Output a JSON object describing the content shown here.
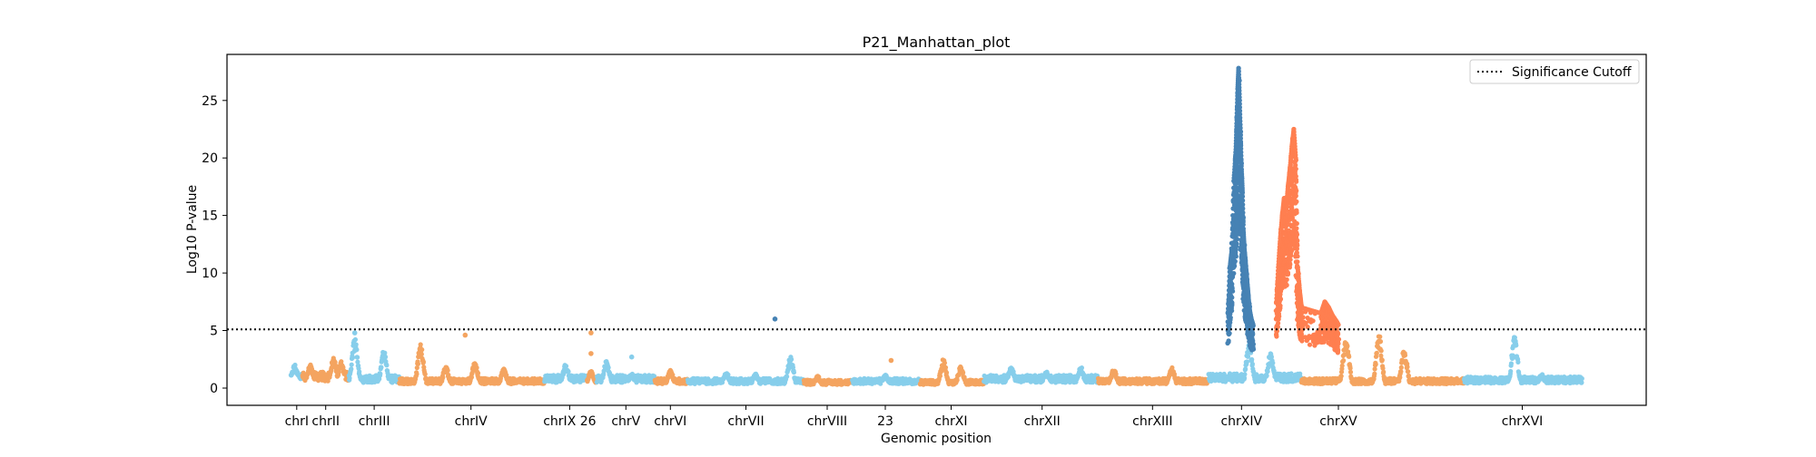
{
  "chart_data": {
    "type": "scatter",
    "title": "P21_Manhattan_plot",
    "xlabel": "Genomic position",
    "ylabel": "Log10 P-value",
    "ylim": [
      -1.5,
      29
    ],
    "yticks": [
      0,
      5,
      10,
      15,
      20,
      25
    ],
    "grid": false,
    "legend": {
      "placement": "top-right",
      "entries": [
        "Significance Cutoff"
      ]
    },
    "threshold": {
      "label": "Significance Cutoff",
      "value": 5.1,
      "style": "dotted",
      "color": "#000000"
    },
    "colors": {
      "sky": "#87ceeb",
      "orange": "#f4a460",
      "steelblue": "#4682b4",
      "coral": "#ff7f50"
    },
    "chromosomes": [
      {
        "label": "chrI",
        "start": 0,
        "end": 6,
        "color": "sky",
        "baseline": 1.0,
        "peaks": [
          [
            2,
            2.0
          ]
        ]
      },
      {
        "label": "chrII",
        "start": 6,
        "end": 30,
        "color": "orange",
        "baseline": 1.0,
        "peaks": [
          [
            10,
            2.0
          ],
          [
            22,
            2.5
          ],
          [
            26,
            2.2
          ]
        ]
      },
      {
        "label": "chrIII",
        "start": 30,
        "end": 56,
        "color": "sky",
        "baseline": 0.8,
        "peaks": [
          [
            33,
            4.3
          ],
          [
            48,
            3.2
          ]
        ]
      },
      {
        "label": "chrIV",
        "start": 56,
        "end": 131,
        "color": "orange",
        "baseline": 0.6,
        "peaks": [
          [
            67,
            3.7
          ],
          [
            80,
            1.8
          ],
          [
            95,
            2.2
          ],
          [
            110,
            1.6
          ]
        ]
      },
      {
        "label": "chrIX",
        "start": 131,
        "end": 153,
        "color": "sky",
        "baseline": 0.8,
        "peaks": [
          [
            142,
            2.0
          ]
        ]
      },
      {
        "label": "26",
        "start": 153,
        "end": 158,
        "color": "orange",
        "baseline": 0.7,
        "peaks": [
          [
            155,
            1.4
          ]
        ]
      },
      {
        "label": "chrV",
        "start": 158,
        "end": 188,
        "color": "sky",
        "baseline": 0.8,
        "peaks": [
          [
            163,
            2.3
          ],
          [
            176,
            1.2
          ]
        ]
      },
      {
        "label": "chrVI",
        "start": 188,
        "end": 205,
        "color": "orange",
        "baseline": 0.6,
        "peaks": [
          [
            196,
            1.5
          ]
        ]
      },
      {
        "label": "chrVII",
        "start": 205,
        "end": 265,
        "color": "sky",
        "baseline": 0.6,
        "peaks": [
          [
            225,
            1.3
          ],
          [
            240,
            1.2
          ],
          [
            258,
            2.6
          ]
        ]
      },
      {
        "label": "chrVIII",
        "start": 265,
        "end": 290,
        "color": "orange",
        "baseline": 0.5,
        "peaks": [
          [
            272,
            1.0
          ]
        ]
      },
      {
        "label": "23",
        "start": 290,
        "end": 325,
        "color": "sky",
        "baseline": 0.6,
        "peaks": [
          [
            307,
            1.1
          ]
        ]
      },
      {
        "label": "chrXI",
        "start": 325,
        "end": 358,
        "color": "orange",
        "baseline": 0.5,
        "peaks": [
          [
            337,
            2.4
          ],
          [
            346,
            1.8
          ]
        ]
      },
      {
        "label": "chrXII",
        "start": 358,
        "end": 417,
        "color": "sky",
        "baseline": 0.8,
        "peaks": [
          [
            372,
            1.8
          ],
          [
            390,
            1.5
          ],
          [
            408,
            1.8
          ]
        ]
      },
      {
        "label": "chrXIII",
        "start": 417,
        "end": 474,
        "color": "orange",
        "baseline": 0.6,
        "peaks": [
          [
            425,
            1.6
          ],
          [
            455,
            1.7
          ]
        ]
      },
      {
        "label": "chrXIV",
        "start": 474,
        "end": 522,
        "color": "sky",
        "baseline": 0.9,
        "peaks": [
          [
            495,
            4.0
          ],
          [
            506,
            3.0
          ]
        ]
      },
      {
        "label": "chrXV",
        "start": 522,
        "end": 606,
        "color": "orange",
        "baseline": 0.6,
        "peaks": [
          [
            545,
            4.5
          ],
          [
            562,
            4.5
          ],
          [
            575,
            3.2
          ]
        ]
      },
      {
        "label": "chrXVI",
        "start": 606,
        "end": 667,
        "color": "sky",
        "baseline": 0.7,
        "peaks": [
          [
            632,
            4.3
          ],
          [
            646,
            1.2
          ]
        ]
      }
    ],
    "sig_series": [
      {
        "color": "steelblue",
        "points": [
          [
            484,
            6.5
          ],
          [
            485,
            10.5
          ],
          [
            486,
            12.0
          ],
          [
            487,
            18.0
          ],
          [
            488,
            20.5
          ],
          [
            488.5,
            23.0
          ],
          [
            489,
            26.0
          ],
          [
            489.5,
            27.8
          ],
          [
            490,
            25.0
          ],
          [
            490.5,
            22.0
          ],
          [
            491,
            19.0
          ],
          [
            491.5,
            17.0
          ],
          [
            492,
            13.5
          ],
          [
            492.5,
            12.0
          ],
          [
            493,
            11.0
          ],
          [
            493.5,
            10.0
          ],
          [
            494,
            9.0
          ],
          [
            494.5,
            8.0
          ],
          [
            495,
            7.0
          ],
          [
            496,
            6.0
          ],
          [
            497,
            5.5
          ]
        ]
      },
      {
        "color": "coral",
        "points": [
          [
            509,
            7.5
          ],
          [
            510,
            10.5
          ],
          [
            511,
            13.0
          ],
          [
            512,
            15.0
          ],
          [
            513,
            16.5
          ],
          [
            514,
            15.5
          ],
          [
            515,
            17.5
          ],
          [
            516,
            19.0
          ],
          [
            517,
            21.0
          ],
          [
            518,
            22.5
          ],
          [
            519,
            20.0
          ],
          [
            520,
            10.5
          ],
          [
            521,
            8.5
          ],
          [
            522,
            7.0
          ],
          [
            532,
            6.5
          ],
          [
            534,
            7.5
          ],
          [
            536,
            7.0
          ],
          [
            538,
            6.3
          ],
          [
            540,
            5.8
          ],
          [
            541,
            5.5
          ]
        ]
      }
    ],
    "outliers": [
      {
        "x": 33,
        "y": 4.8,
        "color": "sky"
      },
      {
        "x": 90,
        "y": 4.6,
        "color": "orange"
      },
      {
        "x": 155,
        "y": 4.8,
        "color": "orange"
      },
      {
        "x": 155,
        "y": 3.0,
        "color": "orange"
      },
      {
        "x": 176,
        "y": 2.7,
        "color": "sky"
      },
      {
        "x": 250,
        "y": 6.0,
        "color": "steelblue"
      },
      {
        "x": 310,
        "y": 2.4,
        "color": "orange"
      }
    ],
    "tick_labels": [
      {
        "label": "chrI",
        "pos": 3
      },
      {
        "label": "chrII",
        "pos": 18
      },
      {
        "label": "chrIII",
        "pos": 43
      },
      {
        "label": "chrIV",
        "pos": 93
      },
      {
        "label": "chrIX 26",
        "pos": 144
      },
      {
        "label": "chrV",
        "pos": 173
      },
      {
        "label": "chrVI",
        "pos": 196
      },
      {
        "label": "chrVII",
        "pos": 235
      },
      {
        "label": "chrVIII",
        "pos": 277
      },
      {
        "label": "23",
        "pos": 307
      },
      {
        "label": "chrXI",
        "pos": 341
      },
      {
        "label": "chrXII",
        "pos": 388
      },
      {
        "label": "chrXIII",
        "pos": 445
      },
      {
        "label": "chrXIV",
        "pos": 491
      },
      {
        "label": "chrXV",
        "pos": 541
      },
      {
        "label": "chrXVI",
        "pos": 636
      }
    ],
    "xlim": [
      -33,
      700
    ]
  }
}
